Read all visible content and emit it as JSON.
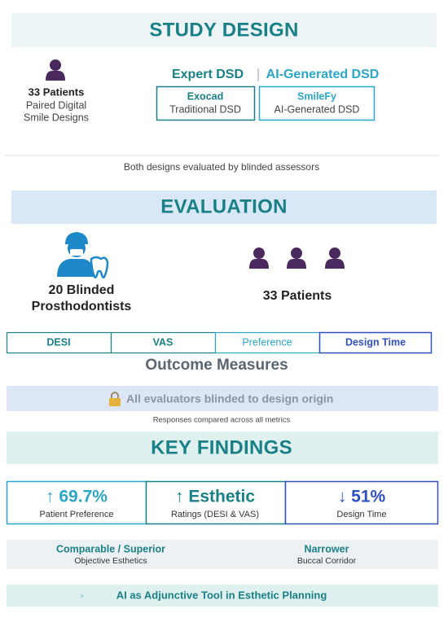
{
  "study_design": {
    "title": "STUDY DESIGN",
    "patients": "33 Patients",
    "patients_desc": [
      "Paired Digital",
      "Smile Designs"
    ],
    "expert_label": "Expert DSD",
    "ai_label": "AI-Generated DSD",
    "expert_box": {
      "name": "Exocad",
      "desc": "Traditional DSD"
    },
    "ai_box": {
      "name": "SmileFy",
      "desc": "AI-Generated DSD"
    },
    "note": "Both designs evaluated by blinded assessors"
  },
  "evaluation": {
    "title": "EVALUATION",
    "evaluators": [
      "20 Blinded",
      "Prosthodontists"
    ],
    "patients": "33 Patients",
    "measures": [
      "DESI",
      "VAS",
      "Preference",
      "Design Time"
    ],
    "measures_title": "Outcome Measures",
    "blinding": "All evaluators blinded to design origin",
    "note": "Responses compared across all metrics"
  },
  "key_findings": {
    "title": "KEY FINDINGS",
    "metrics": [
      {
        "value": "↑ 69.7%",
        "label": "Patient Preference"
      },
      {
        "value": "↑ Esthetic",
        "label": "Ratings (DESI & VAS)"
      },
      {
        "value": "↓ 51%",
        "label": "Design Time"
      }
    ],
    "secondary": [
      {
        "title": "Comparable / Superior",
        "desc": "Objective Esthetics"
      },
      {
        "title": "Narrower",
        "desc": "Buccal Corridor"
      }
    ],
    "conclusion": "AI as Adjunctive Tool in Esthetic Planning"
  }
}
